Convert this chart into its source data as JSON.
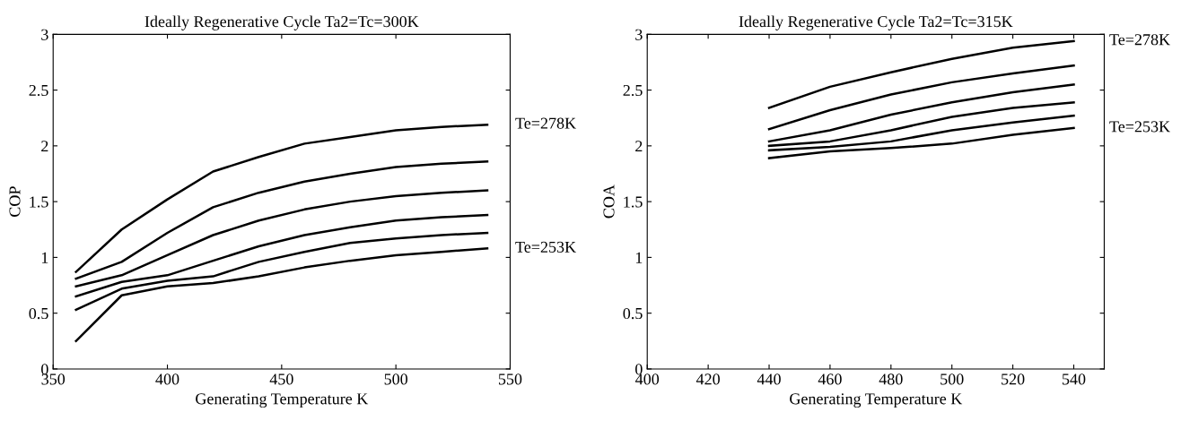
{
  "chart_data": [
    {
      "type": "line",
      "title": "Ideally Regenerative Cycle Ta2=Tc=300K",
      "xlabel": "Generating Temperature K",
      "ylabel": "COP",
      "x": [
        360,
        380,
        400,
        420,
        440,
        460,
        480,
        500,
        520,
        540
      ],
      "xlim": [
        350,
        550
      ],
      "xticks": [
        350,
        400,
        450,
        500,
        550
      ],
      "ylim": [
        0,
        3
      ],
      "yticks": [
        0,
        0.5,
        1,
        1.5,
        2,
        2.5,
        3
      ],
      "line_style": "solid",
      "marker": "none",
      "grid": false,
      "legend": "right",
      "series": [
        {
          "name": "Te=278K",
          "color": "#000000",
          "values": [
            0.87,
            1.25,
            1.52,
            1.77,
            1.9,
            2.02,
            2.08,
            2.14,
            2.17,
            2.19
          ]
        },
        {
          "color": "#000000",
          "values": [
            0.81,
            0.96,
            1.22,
            1.45,
            1.58,
            1.68,
            1.75,
            1.81,
            1.84,
            1.86
          ]
        },
        {
          "color": "#000000",
          "values": [
            0.74,
            0.84,
            1.02,
            1.2,
            1.33,
            1.43,
            1.5,
            1.55,
            1.58,
            1.6
          ]
        },
        {
          "color": "#000000",
          "values": [
            0.65,
            0.78,
            0.84,
            0.97,
            1.1,
            1.2,
            1.27,
            1.33,
            1.36,
            1.38
          ]
        },
        {
          "color": "#000000",
          "values": [
            0.53,
            0.72,
            0.79,
            0.83,
            0.96,
            1.05,
            1.13,
            1.17,
            1.2,
            1.22
          ]
        },
        {
          "name": "Te=253K",
          "color": "#000000",
          "values": [
            0.25,
            0.66,
            0.74,
            0.77,
            0.83,
            0.91,
            0.97,
            1.02,
            1.05,
            1.08
          ]
        }
      ]
    },
    {
      "type": "line",
      "title": "Ideally Regenerative Cycle Ta2=Tc=315K",
      "xlabel": "Generating Temperature K",
      "ylabel": "COA",
      "x": [
        440,
        460,
        480,
        500,
        520,
        540
      ],
      "xlim": [
        400,
        550
      ],
      "xticks": [
        400,
        420,
        440,
        460,
        480,
        500,
        520,
        540
      ],
      "ylim": [
        0,
        3
      ],
      "yticks": [
        0,
        0.5,
        1,
        1.5,
        2,
        2.5,
        3
      ],
      "line_style": "solid",
      "marker": "none",
      "grid": false,
      "legend": "right",
      "series": [
        {
          "name": "Te=278K",
          "color": "#000000",
          "values": [
            2.34,
            2.53,
            2.66,
            2.78,
            2.88,
            2.94
          ]
        },
        {
          "color": "#000000",
          "values": [
            2.15,
            2.32,
            2.46,
            2.57,
            2.65,
            2.72
          ]
        },
        {
          "color": "#000000",
          "values": [
            2.04,
            2.14,
            2.28,
            2.39,
            2.48,
            2.55
          ]
        },
        {
          "color": "#000000",
          "values": [
            2.0,
            2.04,
            2.14,
            2.26,
            2.34,
            2.39
          ]
        },
        {
          "color": "#000000",
          "values": [
            1.96,
            1.99,
            2.04,
            2.14,
            2.21,
            2.27
          ]
        },
        {
          "name": "Te=253K",
          "color": "#000000",
          "values": [
            1.89,
            1.95,
            1.98,
            2.02,
            2.1,
            2.16
          ]
        }
      ]
    }
  ]
}
